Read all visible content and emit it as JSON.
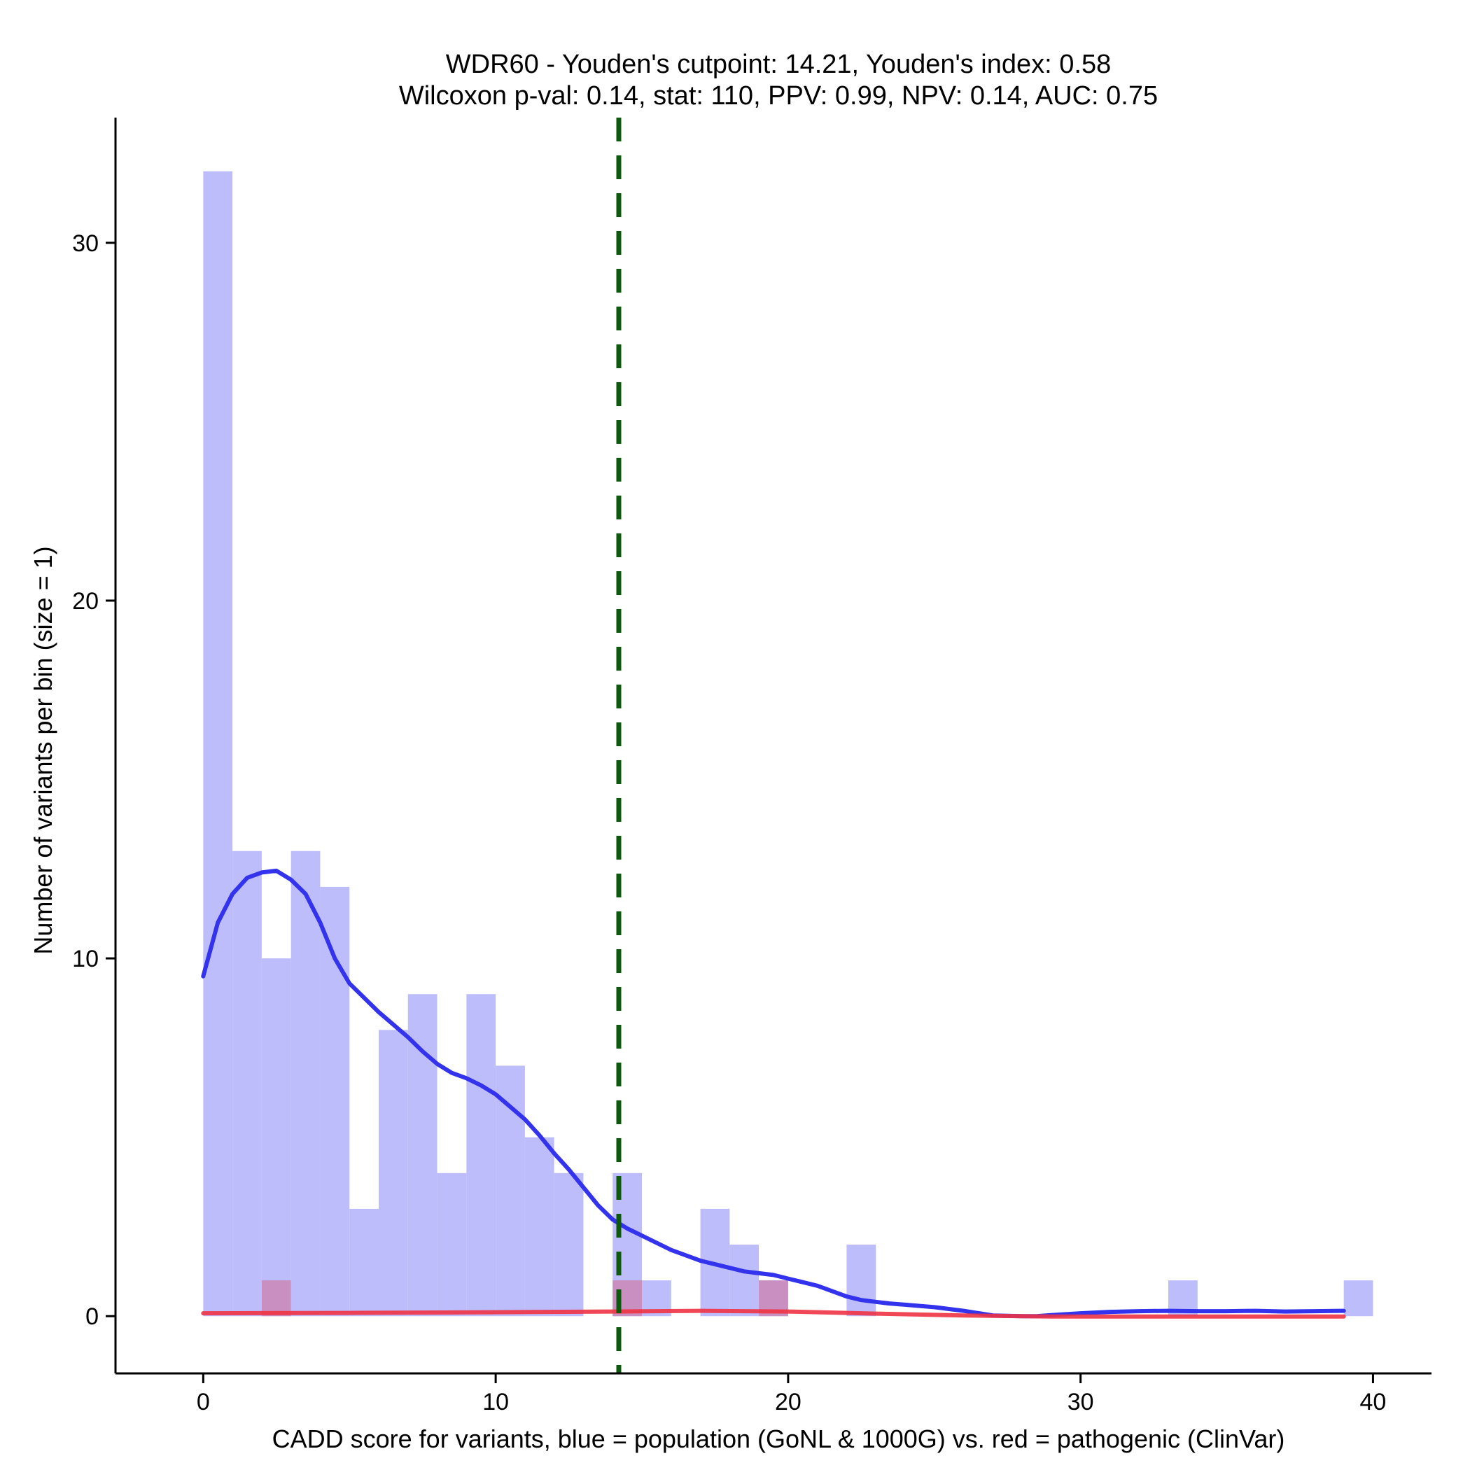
{
  "chart_data": {
    "type": "histogram",
    "title": "WDR60 - Youden's cutpoint: 14.21, Youden's index: 0.58",
    "subtitle": "Wilcoxon p-val: 0.14, stat: 110, PPV: 0.99, NPV: 0.14, AUC: 0.75",
    "xlabel": "CADD score for variants, blue = population (GoNL & 1000G) vs. red = pathogenic (ClinVar)",
    "ylabel": "Number of variants per bin (size = 1)",
    "xlim": [
      -3,
      42
    ],
    "ylim": [
      -1.6,
      33.5
    ],
    "x_ticks": [
      0,
      10,
      20,
      30,
      40
    ],
    "y_ticks": [
      0,
      10,
      20,
      30
    ],
    "bin_size": 1,
    "cutpoint": 14.21,
    "colors": {
      "population_bar": "#bdbdfb",
      "pathogenic_bar": "#c98fc0",
      "population_line": "#3333ee",
      "pathogenic_line": "#ee3344",
      "cutpoint_line": "#0d5a0d"
    },
    "series": [
      {
        "name": "population (GoNL & 1000G)",
        "bins": [
          {
            "x0": 0,
            "count": 32
          },
          {
            "x0": 1,
            "count": 13
          },
          {
            "x0": 2,
            "count": 10
          },
          {
            "x0": 3,
            "count": 13
          },
          {
            "x0": 4,
            "count": 12
          },
          {
            "x0": 5,
            "count": 3
          },
          {
            "x0": 6,
            "count": 8
          },
          {
            "x0": 7,
            "count": 9
          },
          {
            "x0": 8,
            "count": 4
          },
          {
            "x0": 9,
            "count": 9
          },
          {
            "x0": 10,
            "count": 7
          },
          {
            "x0": 11,
            "count": 5
          },
          {
            "x0": 12,
            "count": 4
          },
          {
            "x0": 14,
            "count": 4
          },
          {
            "x0": 15,
            "count": 1
          },
          {
            "x0": 17,
            "count": 3
          },
          {
            "x0": 18,
            "count": 2
          },
          {
            "x0": 19,
            "count": 1
          },
          {
            "x0": 22,
            "count": 2
          },
          {
            "x0": 33,
            "count": 1
          },
          {
            "x0": 39,
            "count": 1
          }
        ],
        "density_curve": [
          [
            0,
            9.5
          ],
          [
            0.5,
            11.0
          ],
          [
            1,
            11.8
          ],
          [
            1.5,
            12.25
          ],
          [
            2,
            12.4
          ],
          [
            2.5,
            12.45
          ],
          [
            3,
            12.2
          ],
          [
            3.5,
            11.8
          ],
          [
            4,
            11.0
          ],
          [
            4.5,
            10.0
          ],
          [
            5,
            9.3
          ],
          [
            5.5,
            8.9
          ],
          [
            6,
            8.5
          ],
          [
            6.5,
            8.15
          ],
          [
            7,
            7.8
          ],
          [
            7.5,
            7.4
          ],
          [
            8,
            7.05
          ],
          [
            8.5,
            6.8
          ],
          [
            9,
            6.65
          ],
          [
            9.5,
            6.45
          ],
          [
            10,
            6.2
          ],
          [
            10.5,
            5.85
          ],
          [
            11,
            5.5
          ],
          [
            11.5,
            5.05
          ],
          [
            12,
            4.55
          ],
          [
            12.5,
            4.1
          ],
          [
            13,
            3.6
          ],
          [
            13.5,
            3.1
          ],
          [
            14,
            2.7
          ],
          [
            14.5,
            2.45
          ],
          [
            15,
            2.25
          ],
          [
            15.5,
            2.05
          ],
          [
            16,
            1.85
          ],
          [
            16.5,
            1.7
          ],
          [
            17,
            1.55
          ],
          [
            17.5,
            1.45
          ],
          [
            18,
            1.35
          ],
          [
            18.5,
            1.25
          ],
          [
            19,
            1.2
          ],
          [
            19.5,
            1.15
          ],
          [
            20,
            1.05
          ],
          [
            20.5,
            0.95
          ],
          [
            21,
            0.85
          ],
          [
            21.5,
            0.7
          ],
          [
            22,
            0.55
          ],
          [
            22.5,
            0.45
          ],
          [
            23,
            0.4
          ],
          [
            23.5,
            0.35
          ],
          [
            24,
            0.32
          ],
          [
            25,
            0.25
          ],
          [
            26,
            0.15
          ],
          [
            27,
            0.02
          ],
          [
            28,
            0.0
          ],
          [
            28.5,
            0.0
          ],
          [
            29,
            0.03
          ],
          [
            30,
            0.08
          ],
          [
            31,
            0.12
          ],
          [
            32,
            0.14
          ],
          [
            33,
            0.15
          ],
          [
            34,
            0.14
          ],
          [
            35,
            0.14
          ],
          [
            36,
            0.15
          ],
          [
            37,
            0.13
          ],
          [
            38,
            0.14
          ],
          [
            39,
            0.15
          ]
        ]
      },
      {
        "name": "pathogenic (ClinVar)",
        "bins": [
          {
            "x0": 2,
            "count": 1
          },
          {
            "x0": 14,
            "count": 1
          },
          {
            "x0": 19,
            "count": 1
          }
        ],
        "density_curve": [
          [
            0,
            0.08
          ],
          [
            5,
            0.09
          ],
          [
            10,
            0.11
          ],
          [
            14,
            0.13
          ],
          [
            17,
            0.15
          ],
          [
            20,
            0.13
          ],
          [
            23,
            0.07
          ],
          [
            26,
            0.02
          ],
          [
            29,
            -0.01
          ],
          [
            32,
            -0.01
          ],
          [
            36,
            -0.01
          ],
          [
            39,
            -0.01
          ]
        ]
      }
    ]
  }
}
